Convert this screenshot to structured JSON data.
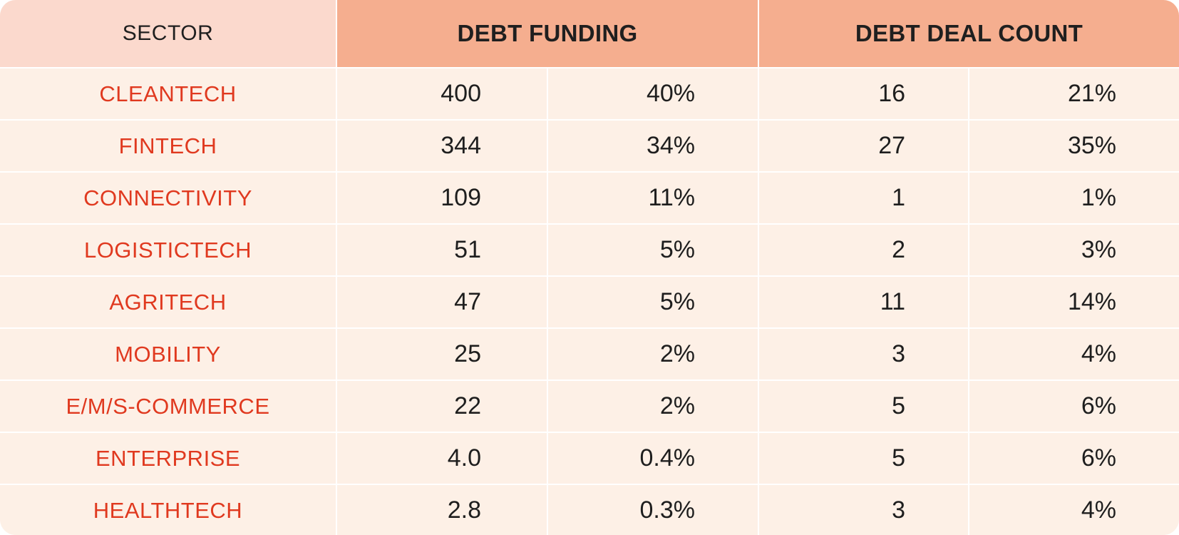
{
  "headers": {
    "sector": "SECTOR",
    "debt_funding": "DEBT FUNDING",
    "debt_deal_count": "DEBT DEAL COUNT"
  },
  "rows": [
    {
      "sector": "CLEANTECH",
      "funding": "400",
      "funding_pct": "40%",
      "deals": "16",
      "deals_pct": "21%"
    },
    {
      "sector": "FINTECH",
      "funding": "344",
      "funding_pct": "34%",
      "deals": "27",
      "deals_pct": "35%"
    },
    {
      "sector": "CONNECTIVITY",
      "funding": "109",
      "funding_pct": "11%",
      "deals": "1",
      "deals_pct": "1%"
    },
    {
      "sector": "LOGISTICTECH",
      "funding": "51",
      "funding_pct": "5%",
      "deals": "2",
      "deals_pct": "3%"
    },
    {
      "sector": "AGRITECH",
      "funding": "47",
      "funding_pct": "5%",
      "deals": "11",
      "deals_pct": "14%"
    },
    {
      "sector": "MOBILITY",
      "funding": "25",
      "funding_pct": "2%",
      "deals": "3",
      "deals_pct": "4%"
    },
    {
      "sector": "E/M/S-COMMERCE",
      "funding": "22",
      "funding_pct": "2%",
      "deals": "5",
      "deals_pct": "6%"
    },
    {
      "sector": "ENTERPRISE",
      "funding": "4.0",
      "funding_pct": "0.4%",
      "deals": "5",
      "deals_pct": "6%"
    },
    {
      "sector": "HEALTHTECH",
      "funding": "2.8",
      "funding_pct": "0.3%",
      "deals": "3",
      "deals_pct": "4%"
    }
  ],
  "colors": {
    "sector_text": "#e0391f",
    "header_group_bg": "#f5ae8f",
    "header_sector_bg": "#fbd9cd",
    "body_bg": "#fdf0e6"
  }
}
